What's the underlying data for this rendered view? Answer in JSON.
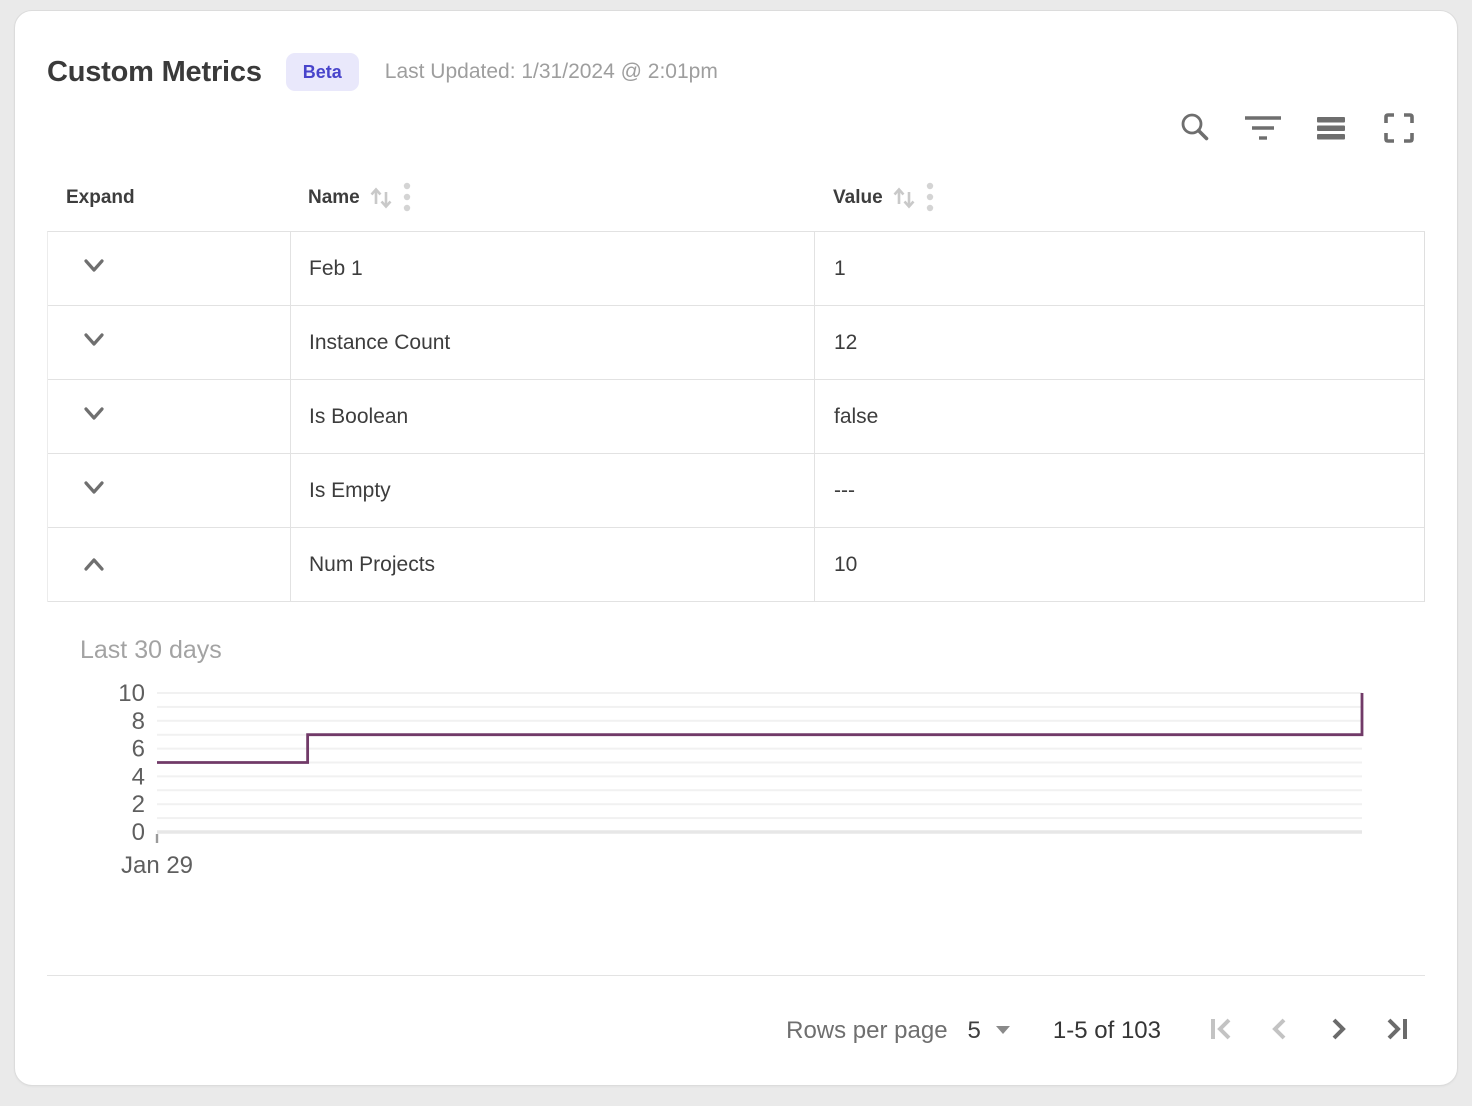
{
  "header": {
    "title": "Custom Metrics",
    "badge_label": "Beta",
    "last_updated": "Last Updated: 1/31/2024 @ 2:01pm"
  },
  "toolbar": {
    "buttons": [
      {
        "icon": "search-icon"
      },
      {
        "icon": "filter-icon"
      },
      {
        "icon": "density-icon"
      },
      {
        "icon": "fullscreen-icon"
      }
    ]
  },
  "table": {
    "columns": {
      "expand": {
        "label": "Expand"
      },
      "name": {
        "label": "Name",
        "sortable": true,
        "menu": true
      },
      "value": {
        "label": "Value",
        "sortable": true,
        "menu": true
      }
    },
    "rows": [
      {
        "name": "Feb 1",
        "value": "1",
        "expanded": false
      },
      {
        "name": "Instance Count",
        "value": "12",
        "expanded": false
      },
      {
        "name": "Is Boolean",
        "value": "false",
        "expanded": false
      },
      {
        "name": "Is Empty",
        "value": "---",
        "expanded": false
      },
      {
        "name": "Num Projects",
        "value": "10",
        "expanded": true
      }
    ]
  },
  "detail_panel": {
    "title": "Last 30 days"
  },
  "chart_data": {
    "type": "line",
    "step": "post",
    "title": "Last 30 days",
    "series": [
      {
        "name": "Num Projects",
        "points": [
          {
            "x_frac": 0.0,
            "y": 5
          },
          {
            "x_frac": 0.125,
            "y": 5
          },
          {
            "x_frac": 0.125,
            "y": 7
          },
          {
            "x_frac": 1.0,
            "y": 7
          },
          {
            "x_frac": 1.0,
            "y": 10
          }
        ]
      }
    ],
    "ylim": [
      0,
      10
    ],
    "y_ticks_labeled": [
      0,
      2,
      4,
      6,
      8,
      10
    ],
    "y_gridlines_every": 1,
    "x_tick_labels": [
      "Jan 29"
    ],
    "legend": false,
    "line_color": "#713a68",
    "grid_color": "#f1f1f1",
    "baseline_color": "#e7e7e7",
    "axis_label_color": "#5f5f5f",
    "tick_color": "#9a9a9a"
  },
  "pagination": {
    "rows_per_page_label": "Rows per page",
    "rows_per_page_value": "5",
    "range_label": "1-5 of 103",
    "first_enabled": false,
    "prev_enabled": false,
    "next_enabled": true,
    "last_enabled": true
  },
  "colors": {
    "badge_bg": "#e9e8fb",
    "badge_text": "#4844cb",
    "icon_gray": "#6e6e6e",
    "icon_light": "#c9c9c9",
    "pager_disabled": "#c3c3c3",
    "pager_enabled": "#6b6b6b",
    "chevron_gray": "#6f6f6f"
  }
}
